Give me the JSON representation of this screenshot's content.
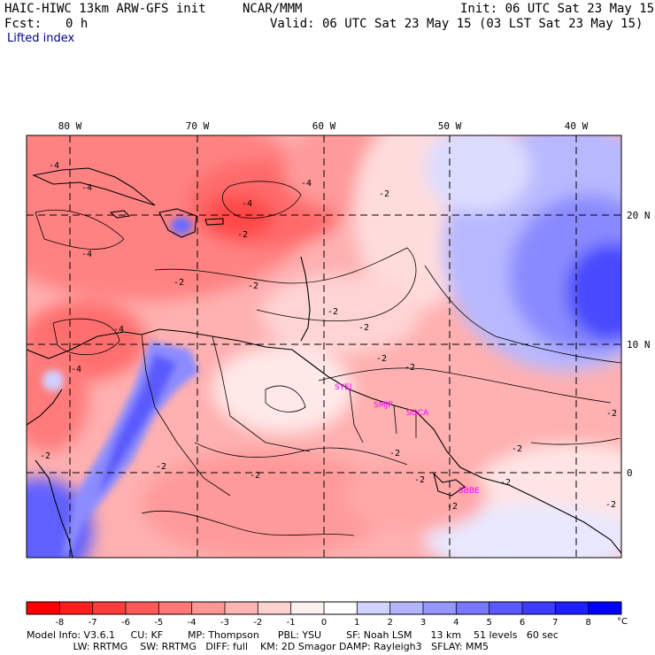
{
  "header": {
    "title": "HAIC-HIWC 13km ARW-GFS init",
    "org": "NCAR/MMM",
    "init": "Init: 06 UTC Sat 23 May 15",
    "fcst_label": "Fcst:",
    "fcst_value": "0 h",
    "valid": "Valid: 06 UTC Sat 23 May 15 (03 LST Sat 23 May 15)",
    "field": "Lifted index"
  },
  "map": {
    "lon_labels": [
      "80 W",
      "70 W",
      "60 W",
      "50 W",
      "40 W"
    ],
    "lat_labels": [
      "20 N",
      "10 N",
      "0"
    ],
    "contour_labels": [
      "-4",
      "-4",
      "-4",
      "-4",
      "-4",
      "-4",
      "-4",
      "-2",
      "-2",
      "-2",
      "-2",
      "-2",
      "-2",
      "-2",
      "-2",
      "-2",
      "-2",
      "-2",
      "-2",
      "-2",
      "-2",
      "-2",
      "-2",
      "-2",
      "-2"
    ],
    "stations": [
      "SYEJ",
      "SMJP",
      "SOCA",
      "SBBE"
    ],
    "station_color": "#ff00ff"
  },
  "colorbar": {
    "ticks": [
      "-8",
      "-7",
      "-6",
      "-5",
      "-4",
      "-3",
      "-2",
      "-1",
      "0",
      "1",
      "2",
      "3",
      "4",
      "5",
      "6",
      "7",
      "8"
    ],
    "unit": "°C",
    "colors": [
      "#ff0000",
      "#ff1e1e",
      "#ff3c3c",
      "#ff5a5a",
      "#ff7878",
      "#ff9696",
      "#ffb4b4",
      "#ffd2d2",
      "#fff0f0",
      "#ffffff",
      "#d2d2ff",
      "#b4b4ff",
      "#9696ff",
      "#7878ff",
      "#5a5aff",
      "#3c3cff",
      "#1e1eff",
      "#0000ff"
    ]
  },
  "footer": {
    "line1": "Model Info: V3.6.1     CU: KF        MP: Thompson      PBL: YSU        SF: Noah LSM      13 km    51 levels   60 sec",
    "line2": "               LW: RRTMG    SW: RRTMG   DIFF: full    KM: 2D Smagor DAMP: Rayleigh3   SFLAY: MM5"
  }
}
